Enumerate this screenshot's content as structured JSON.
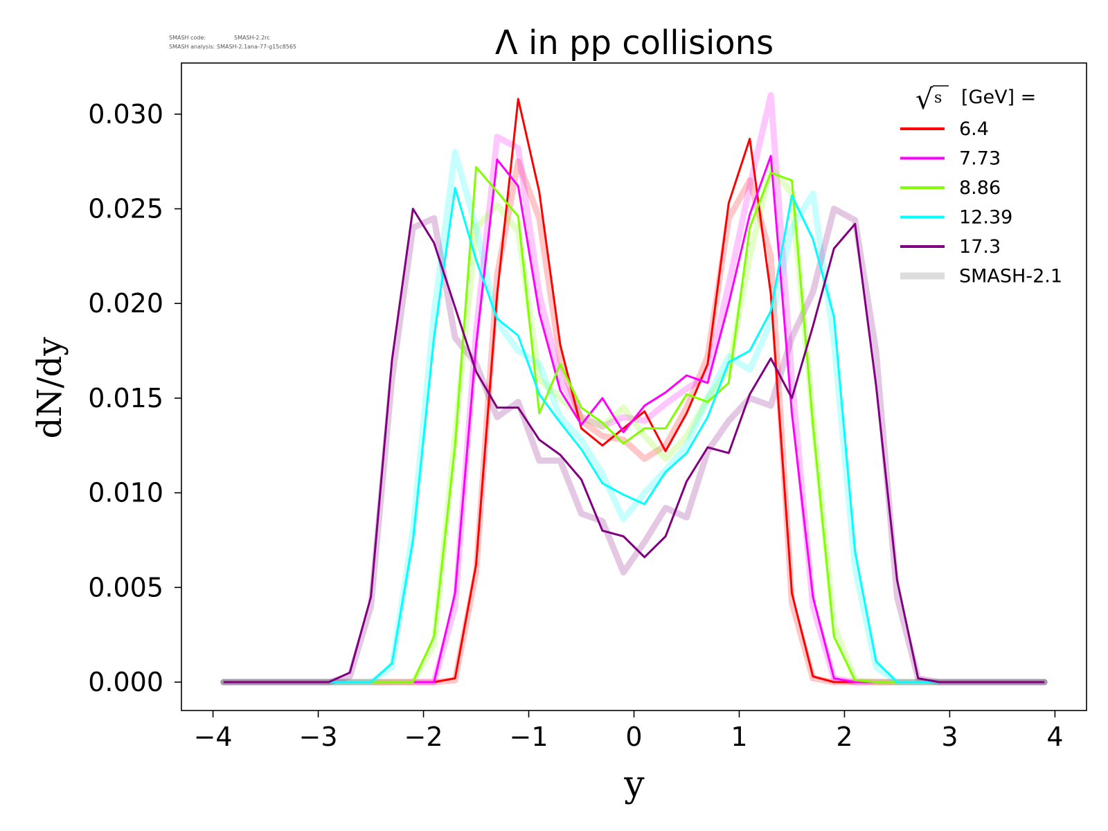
{
  "meta": {
    "code_label": "SMASH code:",
    "code_value": "SMASH-2.2rc",
    "analysis_label": "SMASH analysis:",
    "analysis_value": "SMASH-2.1ana-77-g15c8565"
  },
  "chart_data": {
    "type": "line",
    "title": "Λ in pp collisions",
    "xlabel": "y",
    "ylabel": "dN/dy",
    "xlim": [
      -4.3,
      4.3
    ],
    "ylim": [
      -0.0015,
      0.0327
    ],
    "xticks": [
      -4,
      -3,
      -2,
      -1,
      0,
      1,
      2,
      3,
      4
    ],
    "xtick_labels": [
      "−4",
      "−3",
      "−2",
      "−1",
      "0",
      "1",
      "2",
      "3",
      "4"
    ],
    "yticks": [
      0.0,
      0.005,
      0.01,
      0.015,
      0.02,
      0.025,
      0.03
    ],
    "ytick_labels": [
      "0.000",
      "0.005",
      "0.010",
      "0.015",
      "0.020",
      "0.025",
      "0.030"
    ],
    "grid": false,
    "legend": {
      "placement": "top-right",
      "title_label": "[GeV] =",
      "title_sqrt_symbol": "√",
      "title_sqrt_arg": "s"
    },
    "x": [
      -3.9,
      -3.7,
      -3.5,
      -3.3,
      -3.1,
      -2.9,
      -2.7,
      -2.5,
      -2.3,
      -2.1,
      -1.9,
      -1.7,
      -1.5,
      -1.3,
      -1.1,
      -0.9,
      -0.7,
      -0.5,
      -0.3,
      -0.1,
      0.1,
      0.3,
      0.5,
      0.7,
      0.9,
      1.1,
      1.3,
      1.5,
      1.7,
      1.9,
      2.1,
      2.3,
      2.5,
      2.7,
      2.9,
      3.1,
      3.3,
      3.5,
      3.7,
      3.9
    ],
    "series": [
      {
        "name": "6.4",
        "color": "#ff0000",
        "values": [
          0,
          0,
          0,
          0,
          0,
          0,
          0,
          0,
          0,
          0,
          0,
          0.0002,
          0.0062,
          0.0205,
          0.0308,
          0.0259,
          0.0178,
          0.0134,
          0.0125,
          0.0134,
          0.0143,
          0.0122,
          0.0142,
          0.0168,
          0.0253,
          0.0287,
          0.0205,
          0.0047,
          0.0003,
          0,
          0,
          0,
          0,
          0,
          0,
          0,
          0,
          0,
          0,
          0
        ],
        "reference": [
          0,
          0,
          0,
          0,
          0,
          0,
          0,
          0,
          0,
          0,
          0,
          0.0001,
          0.0058,
          0.0215,
          0.0275,
          0.0245,
          0.017,
          0.0138,
          0.013,
          0.0128,
          0.0118,
          0.0125,
          0.0145,
          0.0172,
          0.0245,
          0.0265,
          0.0225,
          0.0042,
          0.0002,
          0,
          0,
          0,
          0,
          0,
          0,
          0,
          0,
          0,
          0,
          0
        ]
      },
      {
        "name": "7.73",
        "color": "#ff00ff",
        "values": [
          0,
          0,
          0,
          0,
          0,
          0,
          0,
          0,
          0,
          0,
          0,
          0.0047,
          0.0178,
          0.0276,
          0.0262,
          0.0195,
          0.0154,
          0.0136,
          0.015,
          0.0132,
          0.0146,
          0.0153,
          0.0162,
          0.0158,
          0.02,
          0.0247,
          0.0278,
          0.0142,
          0.0045,
          0.0002,
          0,
          0,
          0,
          0,
          0,
          0,
          0,
          0,
          0,
          0
        ],
        "reference": [
          0,
          0,
          0,
          0,
          0,
          0,
          0,
          0,
          0,
          0,
          0,
          0.004,
          0.0185,
          0.0288,
          0.0282,
          0.0205,
          0.016,
          0.014,
          0.0135,
          0.014,
          0.0138,
          0.0147,
          0.0155,
          0.0162,
          0.021,
          0.0262,
          0.031,
          0.016,
          0.004,
          0.0002,
          0,
          0,
          0,
          0,
          0,
          0,
          0,
          0,
          0,
          0
        ]
      },
      {
        "name": "8.86",
        "color": "#80ff00",
        "values": [
          0,
          0,
          0,
          0,
          0,
          0,
          0,
          0,
          0,
          0,
          0.0024,
          0.0125,
          0.0272,
          0.0259,
          0.0246,
          0.0142,
          0.0168,
          0.0145,
          0.0137,
          0.0126,
          0.0134,
          0.0134,
          0.0152,
          0.0148,
          0.0158,
          0.024,
          0.0269,
          0.0265,
          0.0136,
          0.0024,
          0.0001,
          0,
          0,
          0,
          0,
          0,
          0,
          0,
          0,
          0
        ],
        "reference": [
          0,
          0,
          0,
          0,
          0,
          0,
          0,
          0,
          0,
          0,
          0.002,
          0.013,
          0.024,
          0.0252,
          0.0238,
          0.016,
          0.015,
          0.014,
          0.0135,
          0.0145,
          0.013,
          0.0118,
          0.013,
          0.015,
          0.0165,
          0.0225,
          0.0272,
          0.0258,
          0.014,
          0.003,
          0.0001,
          0,
          0,
          0,
          0,
          0,
          0,
          0,
          0,
          0
        ]
      },
      {
        "name": "12.39",
        "color": "#00ffff",
        "values": [
          0,
          0,
          0,
          0,
          0,
          0,
          0,
          0,
          0.001,
          0.0075,
          0.0182,
          0.0261,
          0.0223,
          0.0192,
          0.0183,
          0.0152,
          0.0137,
          0.0123,
          0.0105,
          0.0099,
          0.0094,
          0.0111,
          0.0121,
          0.014,
          0.0169,
          0.0175,
          0.0196,
          0.0257,
          0.0234,
          0.0193,
          0.0069,
          0.0011,
          0,
          0,
          0,
          0,
          0,
          0,
          0,
          0
        ],
        "reference": [
          0,
          0,
          0,
          0,
          0,
          0,
          0,
          0,
          0.0008,
          0.008,
          0.0195,
          0.028,
          0.024,
          0.019,
          0.0175,
          0.0168,
          0.014,
          0.0128,
          0.011,
          0.0086,
          0.01,
          0.0112,
          0.0125,
          0.015,
          0.0172,
          0.0165,
          0.019,
          0.024,
          0.0258,
          0.018,
          0.006,
          0.0008,
          0,
          0,
          0,
          0,
          0,
          0,
          0,
          0
        ]
      },
      {
        "name": "17.3",
        "color": "#800080",
        "values": [
          0,
          0,
          0,
          0,
          0,
          0,
          0.0005,
          0.0045,
          0.017,
          0.025,
          0.0232,
          0.0198,
          0.0164,
          0.0145,
          0.0145,
          0.0128,
          0.012,
          0.0107,
          0.008,
          0.0077,
          0.0066,
          0.0077,
          0.0106,
          0.0124,
          0.0121,
          0.0152,
          0.0171,
          0.015,
          0.0188,
          0.0229,
          0.0242,
          0.0157,
          0.0054,
          0.0002,
          0,
          0,
          0,
          0,
          0,
          0
        ],
        "reference": [
          0,
          0,
          0,
          0,
          0,
          0,
          0.0003,
          0.004,
          0.016,
          0.024,
          0.0245,
          0.0182,
          0.0168,
          0.014,
          0.0148,
          0.0117,
          0.0117,
          0.0089,
          0.0085,
          0.0058,
          0.0074,
          0.0092,
          0.0087,
          0.0122,
          0.0138,
          0.015,
          0.0146,
          0.0182,
          0.0206,
          0.025,
          0.0244,
          0.0175,
          0.0045,
          0.0002,
          0,
          0,
          0,
          0,
          0,
          0
        ]
      }
    ],
    "reference_label": "SMASH-2.1",
    "reference_legend_color": "#dddddd"
  }
}
